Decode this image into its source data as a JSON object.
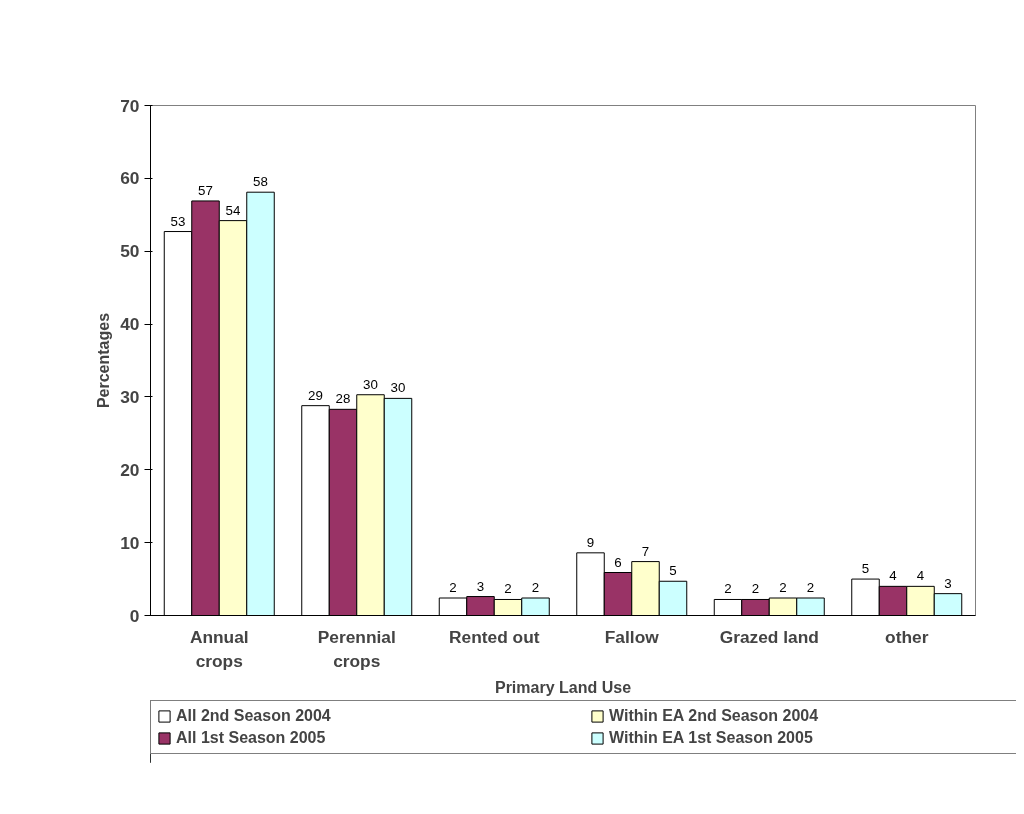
{
  "chart_data": {
    "type": "bar",
    "xlabel": "Primary Land Use",
    "ylabel": "Percentages",
    "categories": [
      "Annual\ncrops",
      "Perennial\ncrops",
      "Rented out",
      "Fallow",
      "Grazed land",
      "other"
    ],
    "series": [
      {
        "name": "All 2nd Season 2004",
        "color": "#ffffff",
        "values": [
          52.7,
          28.8,
          2.4,
          8.6,
          2.2,
          5.0
        ],
        "value_labels": [
          "53",
          "29",
          "2",
          "9",
          "2",
          "5"
        ]
      },
      {
        "name": "All 1st Season 2005",
        "color": "#993366",
        "values": [
          56.9,
          28.3,
          2.6,
          5.9,
          2.2,
          4.0
        ],
        "value_labels": [
          "57",
          "28",
          "3",
          "6",
          "2",
          "4"
        ]
      },
      {
        "name": "Within EA 2nd Season 2004",
        "color": "#ffffcc",
        "values": [
          54.2,
          30.3,
          2.2,
          7.4,
          2.4,
          4.0
        ],
        "value_labels": [
          "54",
          "30",
          "2",
          "7",
          "2",
          "4"
        ]
      },
      {
        "name": "Within EA 1st Season 2005",
        "color": "#ccffff",
        "values": [
          58.1,
          29.8,
          2.4,
          4.7,
          2.4,
          3.0
        ],
        "value_labels": [
          "58",
          "30",
          "2",
          "5",
          "2",
          "3"
        ]
      }
    ],
    "ylim": [
      0,
      70
    ],
    "yticks": [
      0,
      10,
      20,
      30,
      40,
      50,
      60,
      70
    ],
    "grid": false,
    "legend": "bottom"
  }
}
